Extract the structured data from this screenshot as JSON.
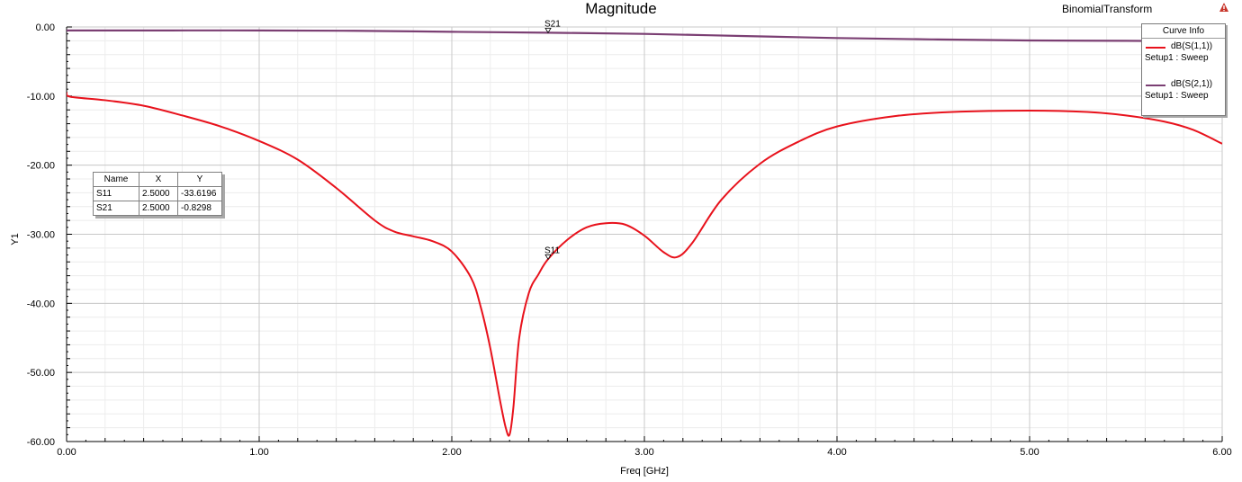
{
  "title": "Magnitude",
  "project": "BinomialTransform",
  "icons": {
    "warning": "warning-triangle-icon"
  },
  "legend": {
    "header": "Curve Info",
    "entries": [
      {
        "name": "dB(S(1,1))",
        "sub": "Setup1 : Sweep",
        "color": "#e8121c"
      },
      {
        "name": "dB(S(2,1))",
        "sub": "Setup1 : Sweep",
        "color": "#7b3f73"
      }
    ]
  },
  "marker_table": {
    "headers": [
      "Name",
      "X",
      "Y"
    ],
    "rows": [
      [
        "S11",
        "2.5000",
        "-33.6196"
      ],
      [
        "S21",
        "2.5000",
        "-0.8298"
      ]
    ]
  },
  "chart_data": {
    "type": "line",
    "title": "Magnitude",
    "xlabel": "Freq [GHz]",
    "ylabel": "Y1",
    "xlim": [
      0,
      6
    ],
    "ylim": [
      -60,
      0
    ],
    "xticks": [
      "0.00",
      "1.00",
      "2.00",
      "3.00",
      "4.00",
      "5.00",
      "6.00"
    ],
    "yticks": [
      "0.00",
      "-10.00",
      "-20.00",
      "-30.00",
      "-40.00",
      "-50.00",
      "-60.00"
    ],
    "grid": true,
    "legend_position": "top-right",
    "series": [
      {
        "name": "dB(S(1,1))",
        "color": "#e8121c",
        "x": [
          0.0,
          0.02,
          0.2,
          0.4,
          0.6,
          0.8,
          1.0,
          1.2,
          1.4,
          1.6,
          1.7,
          1.8,
          1.9,
          2.0,
          2.1,
          2.15,
          2.2,
          2.25,
          2.28,
          2.3,
          2.32,
          2.35,
          2.4,
          2.45,
          2.5,
          2.6,
          2.7,
          2.8,
          2.9,
          3.0,
          3.1,
          3.17,
          3.25,
          3.4,
          3.6,
          3.8,
          4.0,
          4.3,
          4.6,
          5.0,
          5.3,
          5.5,
          5.7,
          5.85,
          6.0
        ],
        "y": [
          -9.5,
          -10.1,
          -10.6,
          -11.4,
          -12.8,
          -14.4,
          -16.5,
          -19.2,
          -23.3,
          -28.0,
          -29.6,
          -30.3,
          -31.0,
          -32.5,
          -36.3,
          -40.5,
          -46.5,
          -54.0,
          -58.0,
          -59.0,
          -55.0,
          -45.0,
          -38.5,
          -35.8,
          -33.6,
          -30.8,
          -29.0,
          -28.4,
          -28.6,
          -30.2,
          -32.6,
          -33.3,
          -31.2,
          -25.0,
          -19.8,
          -16.6,
          -14.4,
          -12.9,
          -12.3,
          -12.1,
          -12.3,
          -12.8,
          -13.7,
          -14.9,
          -16.9
        ]
      },
      {
        "name": "dB(S(2,1))",
        "color": "#7b3f73",
        "x": [
          0.0,
          0.5,
          1.0,
          1.5,
          2.0,
          2.5,
          3.0,
          3.5,
          4.0,
          4.5,
          5.0,
          5.5,
          6.0
        ],
        "y": [
          -0.5,
          -0.5,
          -0.5,
          -0.55,
          -0.7,
          -0.83,
          -1.0,
          -1.3,
          -1.6,
          -1.8,
          -1.95,
          -2.0,
          -2.1
        ]
      }
    ],
    "markers": [
      {
        "label": "S21",
        "x": 2.5,
        "y": -0.8298
      },
      {
        "label": "S11",
        "x": 2.5,
        "y": -33.6196
      }
    ]
  }
}
